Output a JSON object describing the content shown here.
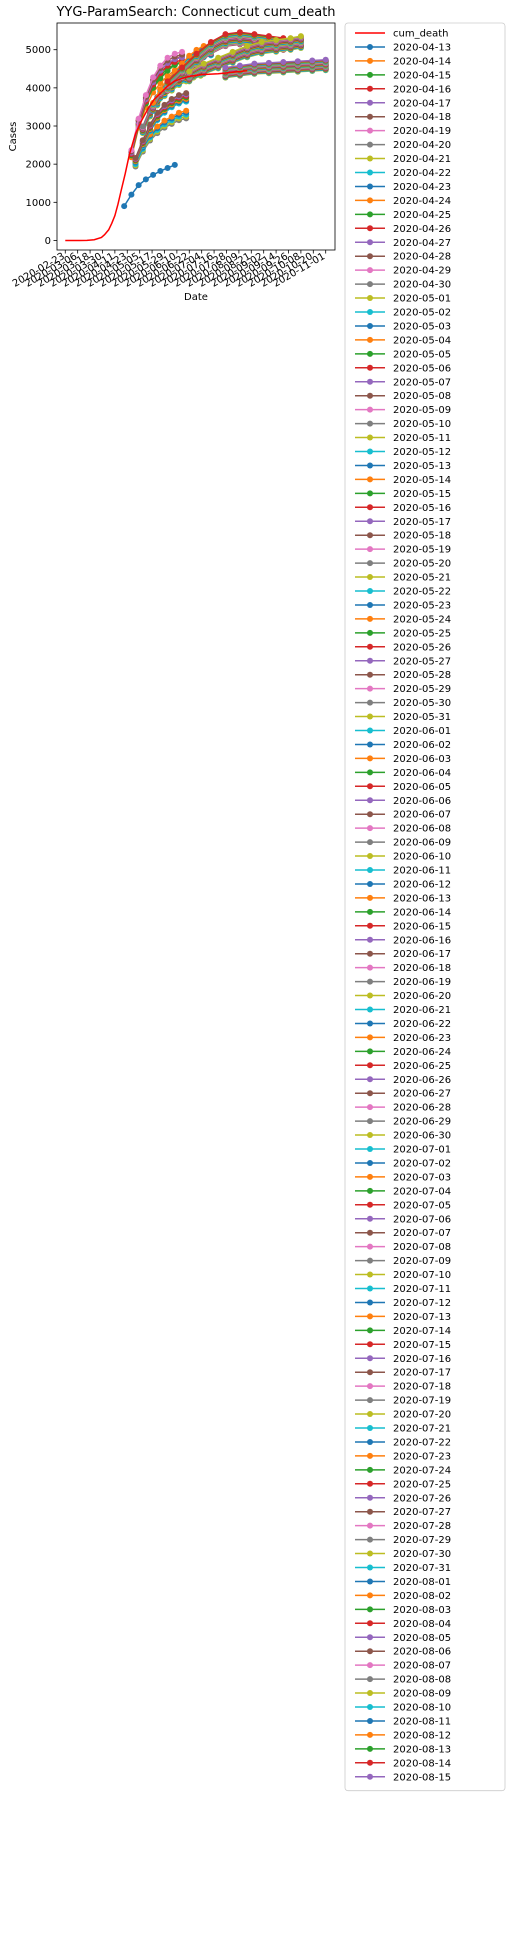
{
  "chart_data": {
    "type": "line",
    "title": "YYG-ParamSearch: Connecticut cum_death",
    "xlabel": "Date",
    "ylabel": "Cases",
    "ylim": [
      -250,
      5700
    ],
    "y_ticks": [
      0,
      1000,
      2000,
      3000,
      4000,
      5000
    ],
    "x_range": [
      "2020-02-15",
      "2020-11-10"
    ],
    "x_ticks": [
      "2020-02-23",
      "2020-03-06",
      "2020-03-18",
      "2020-03-30",
      "2020-04-11",
      "2020-04-23",
      "2020-05-05",
      "2020-05-17",
      "2020-05-29",
      "2020-06-10",
      "2020-06-22",
      "2020-07-04",
      "2020-07-16",
      "2020-07-28",
      "2020-08-09",
      "2020-08-21",
      "2020-09-02",
      "2020-09-14",
      "2020-09-26",
      "2020-10-08",
      "2020-10-20",
      "2020-11-01"
    ],
    "grid": false,
    "legend_position": "outside-right",
    "colors": [
      "#1f77b4",
      "#ff7f0e",
      "#2ca02c",
      "#d62728",
      "#9467bd",
      "#8c564b",
      "#e377c2",
      "#7f7f7f",
      "#bcbd22",
      "#17becf"
    ],
    "actual": {
      "name": "cum_death",
      "color": "#ff0000",
      "x": [
        "2020-02-23",
        "2020-03-01",
        "2020-03-08",
        "2020-03-15",
        "2020-03-22",
        "2020-03-29",
        "2020-04-01",
        "2020-04-05",
        "2020-04-08",
        "2020-04-11",
        "2020-04-14",
        "2020-04-17",
        "2020-04-21",
        "2020-04-25",
        "2020-05-01",
        "2020-05-07",
        "2020-05-13",
        "2020-05-19",
        "2020-05-25",
        "2020-06-01",
        "2020-06-08",
        "2020-06-15",
        "2020-06-22",
        "2020-06-29",
        "2020-07-06",
        "2020-07-13",
        "2020-07-20",
        "2020-07-27",
        "2020-08-03",
        "2020-08-10",
        "2020-08-17"
      ],
      "y": [
        0,
        0,
        0,
        2,
        20,
        80,
        150,
        280,
        450,
        650,
        950,
        1300,
        1750,
        2250,
        2800,
        3150,
        3450,
        3700,
        3850,
        4050,
        4180,
        4250,
        4300,
        4330,
        4350,
        4360,
        4370,
        4390,
        4410,
        4430,
        4450
      ]
    },
    "series_dates": [
      "2020-04-13",
      "2020-04-14",
      "2020-04-15",
      "2020-04-16",
      "2020-04-17",
      "2020-04-18",
      "2020-04-19",
      "2020-04-20",
      "2020-04-21",
      "2020-04-22",
      "2020-04-23",
      "2020-04-24",
      "2020-04-25",
      "2020-04-26",
      "2020-04-27",
      "2020-04-28",
      "2020-04-29",
      "2020-04-30",
      "2020-05-01",
      "2020-05-02",
      "2020-05-03",
      "2020-05-04",
      "2020-05-05",
      "2020-05-06",
      "2020-05-07",
      "2020-05-08",
      "2020-05-09",
      "2020-05-10",
      "2020-05-11",
      "2020-05-12",
      "2020-05-13",
      "2020-05-14",
      "2020-05-15",
      "2020-05-16",
      "2020-05-17",
      "2020-05-18",
      "2020-05-19",
      "2020-05-20",
      "2020-05-21",
      "2020-05-22",
      "2020-05-23",
      "2020-05-24",
      "2020-05-25",
      "2020-05-26",
      "2020-05-27",
      "2020-05-28",
      "2020-05-29",
      "2020-05-30",
      "2020-05-31",
      "2020-06-01",
      "2020-06-02",
      "2020-06-03",
      "2020-06-04",
      "2020-06-05",
      "2020-06-06",
      "2020-06-07",
      "2020-06-08",
      "2020-06-09",
      "2020-06-10",
      "2020-06-11",
      "2020-06-12",
      "2020-06-13",
      "2020-06-14",
      "2020-06-15",
      "2020-06-16",
      "2020-06-17",
      "2020-06-18",
      "2020-06-19",
      "2020-06-20",
      "2020-06-21",
      "2020-06-22",
      "2020-06-23",
      "2020-06-24",
      "2020-06-25",
      "2020-06-26",
      "2020-06-27",
      "2020-06-28",
      "2020-06-29",
      "2020-06-30",
      "2020-07-01",
      "2020-07-02",
      "2020-07-03",
      "2020-07-04",
      "2020-07-05",
      "2020-07-06",
      "2020-07-07",
      "2020-07-08",
      "2020-07-09",
      "2020-07-10",
      "2020-07-11",
      "2020-07-12",
      "2020-07-13",
      "2020-07-14",
      "2020-07-15",
      "2020-07-16",
      "2020-07-17",
      "2020-07-18",
      "2020-07-19",
      "2020-07-20",
      "2020-07-21",
      "2020-07-22",
      "2020-07-23",
      "2020-07-24",
      "2020-07-25",
      "2020-07-26",
      "2020-07-27",
      "2020-07-28",
      "2020-07-29",
      "2020-07-30",
      "2020-07-31",
      "2020-08-01",
      "2020-08-02",
      "2020-08-03",
      "2020-08-04",
      "2020-08-05",
      "2020-08-06",
      "2020-08-07",
      "2020-08-08",
      "2020-08-09",
      "2020-08-10",
      "2020-08-11",
      "2020-08-12",
      "2020-08-13",
      "2020-08-14",
      "2020-08-15"
    ],
    "projection_curves": [
      {
        "for_series": [
          "2020-04-13"
        ],
        "x": [
          "2020-04-20",
          "2020-04-27",
          "2020-05-04",
          "2020-05-11",
          "2020-05-18",
          "2020-05-25",
          "2020-06-01",
          "2020-06-08"
        ],
        "y": [
          900,
          1200,
          1450,
          1600,
          1720,
          1820,
          1900,
          1980
        ]
      },
      {
        "for_series": [
          "2020-04-14",
          "2020-04-16"
        ],
        "x": [
          "2020-04-27",
          "2020-05-04",
          "2020-05-11",
          "2020-05-18",
          "2020-05-25",
          "2020-06-01",
          "2020-06-08",
          "2020-06-15"
        ],
        "y": [
          2250,
          3050,
          3600,
          4000,
          4250,
          4450,
          4600,
          4700
        ]
      },
      {
        "for_series": [
          "2020-04-15",
          "2020-04-19"
        ],
        "x": [
          "2020-04-27",
          "2020-05-04",
          "2020-05-11",
          "2020-05-18",
          "2020-05-25",
          "2020-06-01",
          "2020-06-08",
          "2020-06-15"
        ],
        "y": [
          2300,
          3100,
          3700,
          4150,
          4450,
          4650,
          4750,
          4800
        ]
      },
      {
        "for_series": [
          "2020-04-20",
          "2020-04-24"
        ],
        "x": [
          "2020-05-01",
          "2020-05-08",
          "2020-05-15",
          "2020-05-22",
          "2020-05-29",
          "2020-06-05",
          "2020-06-12",
          "2020-06-19"
        ],
        "y": [
          2000,
          2400,
          2700,
          2900,
          3050,
          3150,
          3250,
          3300
        ]
      },
      {
        "for_series": [
          "2020-04-22",
          "2020-04-28"
        ],
        "x": [
          "2020-05-01",
          "2020-05-08",
          "2020-05-15",
          "2020-05-22",
          "2020-05-29",
          "2020-06-05",
          "2020-06-12",
          "2020-06-19"
        ],
        "y": [
          2100,
          2550,
          2950,
          3250,
          3450,
          3600,
          3700,
          3750
        ]
      },
      {
        "for_series": [
          "2020-05-01",
          "2020-05-10"
        ],
        "x": [
          "2020-05-08",
          "2020-05-15",
          "2020-05-22",
          "2020-05-29",
          "2020-06-05",
          "2020-06-12",
          "2020-06-19",
          "2020-06-26",
          "2020-07-03"
        ],
        "y": [
          2900,
          3350,
          3650,
          3900,
          4050,
          4200,
          4300,
          4400,
          4450
        ]
      },
      {
        "for_series": [
          "2020-05-12",
          "2020-05-24"
        ],
        "x": [
          "2020-05-18",
          "2020-05-25",
          "2020-06-01",
          "2020-06-08",
          "2020-06-15",
          "2020-06-22",
          "2020-06-29",
          "2020-07-06",
          "2020-07-13"
        ],
        "y": [
          3500,
          3850,
          4100,
          4300,
          4500,
          4700,
          4850,
          4950,
          5000
        ]
      },
      {
        "for_series": [
          "2020-05-28",
          "2020-06-15"
        ],
        "x": [
          "2020-06-01",
          "2020-06-15",
          "2020-06-29",
          "2020-07-13",
          "2020-07-27",
          "2020-08-10",
          "2020-08-24",
          "2020-09-07",
          "2020-09-21"
        ],
        "y": [
          4050,
          4400,
          4750,
          5050,
          5250,
          5300,
          5250,
          5200,
          5150
        ]
      },
      {
        "for_series": [
          "2020-06-20",
          "2020-07-10"
        ],
        "x": [
          "2020-06-22",
          "2020-07-06",
          "2020-07-20",
          "2020-08-03",
          "2020-08-17",
          "2020-08-31",
          "2020-09-14",
          "2020-09-28",
          "2020-10-08"
        ],
        "y": [
          4300,
          4500,
          4650,
          4800,
          4950,
          5050,
          5100,
          5150,
          5200
        ]
      },
      {
        "for_series": [
          "2020-07-20",
          "2020-08-15"
        ],
        "x": [
          "2020-07-27",
          "2020-08-10",
          "2020-08-24",
          "2020-09-07",
          "2020-09-21",
          "2020-10-05",
          "2020-10-19",
          "2020-11-01"
        ],
        "y": [
          4400,
          4450,
          4500,
          4520,
          4540,
          4560,
          4580,
          4600
        ]
      }
    ]
  }
}
